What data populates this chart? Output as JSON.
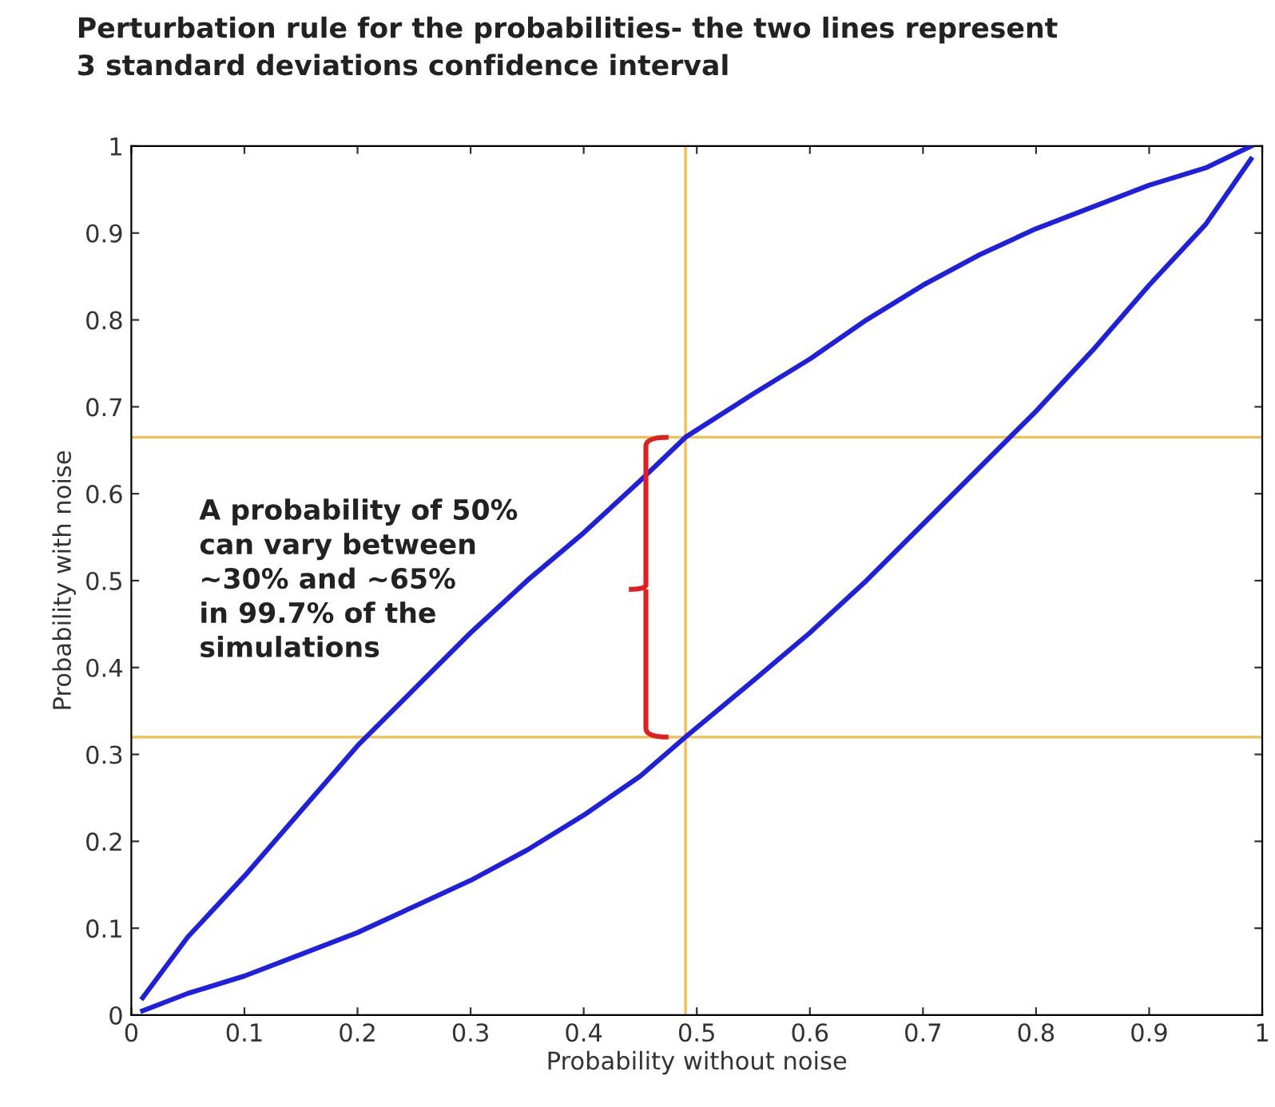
{
  "chart_data": {
    "type": "line",
    "title": "Perturbation rule for the probabilities- the two lines represent\n3 standard deviations confidence interval",
    "xlabel": "Probability without noise",
    "ylabel": "Probability with noise",
    "series": [
      {
        "color": "#1f1fe0",
        "x": [
          0.01,
          0.05,
          0.1,
          0.15,
          0.2,
          0.25,
          0.3,
          0.35,
          0.4,
          0.45,
          0.49,
          0.55,
          0.6,
          0.65,
          0.7,
          0.75,
          0.8,
          0.85,
          0.9,
          0.95,
          0.99
        ],
        "values": [
          0.02,
          0.09,
          0.16,
          0.235,
          0.31,
          0.375,
          0.44,
          0.5,
          0.555,
          0.615,
          0.665,
          0.715,
          0.755,
          0.8,
          0.84,
          0.875,
          0.905,
          0.93,
          0.955,
          0.975,
          1.0
        ]
      },
      {
        "color": "#1f1fe0",
        "x": [
          0.01,
          0.05,
          0.1,
          0.15,
          0.2,
          0.25,
          0.3,
          0.35,
          0.4,
          0.45,
          0.49,
          0.55,
          0.6,
          0.65,
          0.7,
          0.75,
          0.8,
          0.85,
          0.9,
          0.95,
          0.99
        ],
        "values": [
          0.005,
          0.025,
          0.045,
          0.07,
          0.095,
          0.125,
          0.155,
          0.19,
          0.23,
          0.275,
          0.32,
          0.385,
          0.44,
          0.5,
          0.565,
          0.63,
          0.695,
          0.765,
          0.84,
          0.91,
          0.985
        ]
      }
    ],
    "xlim": [
      0,
      1
    ],
    "ylim": [
      0,
      1
    ],
    "xticks": [
      0,
      0.1,
      0.2,
      0.3,
      0.4,
      0.5,
      0.6,
      0.7,
      0.8,
      0.9,
      1
    ],
    "yticks": [
      0,
      0.1,
      0.2,
      0.3,
      0.4,
      0.5,
      0.6,
      0.7,
      0.8,
      0.9,
      1
    ],
    "ref_lines": [
      {
        "axis": "x",
        "value": 0.49,
        "color": "#f0c050"
      },
      {
        "axis": "y",
        "value": 0.665,
        "color": "#f0c050"
      },
      {
        "axis": "y",
        "value": 0.32,
        "color": "#f0c050"
      }
    ],
    "annotations": [
      "A probability of 50%\ncan vary between\n~30% and ~65%\nin 99.7% of the\nsimulations"
    ],
    "marker": "none",
    "line_style": "solid",
    "grid": false,
    "legend": false
  }
}
